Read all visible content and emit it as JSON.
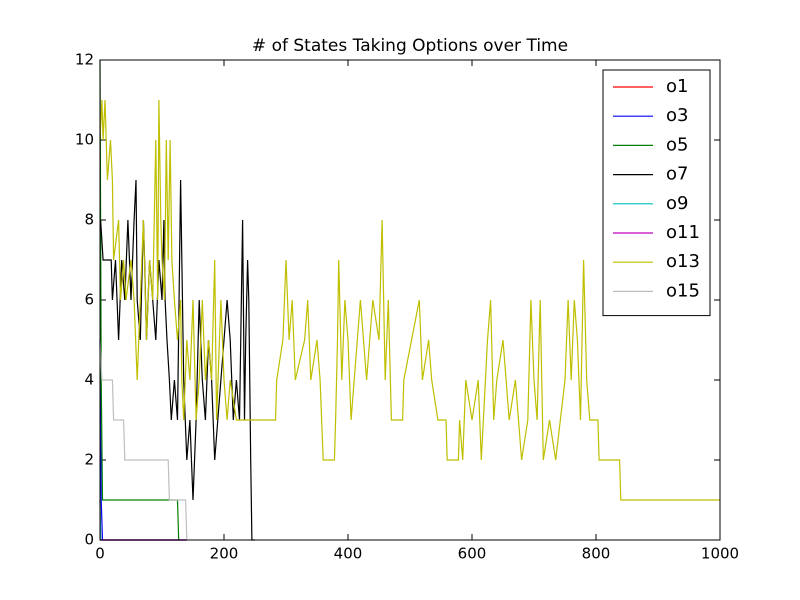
{
  "chart_data": {
    "type": "line",
    "title": "# of States Taking Options over Time",
    "xlim": [
      0,
      1000
    ],
    "ylim": [
      0,
      12
    ],
    "xticks": [
      0,
      200,
      400,
      600,
      800,
      1000
    ],
    "yticks": [
      0,
      2,
      4,
      6,
      8,
      10,
      12
    ],
    "legend": "upper right",
    "series": [
      {
        "name": "o1",
        "color": "#ff0000",
        "x": [
          0,
          1,
          3,
          140
        ],
        "values": [
          1,
          0,
          0,
          0
        ]
      },
      {
        "name": "o3",
        "color": "#0000ff",
        "x": [
          0,
          2,
          4,
          140
        ],
        "values": [
          5,
          1,
          0,
          0
        ]
      },
      {
        "name": "o5",
        "color": "#008000",
        "x": [
          0,
          2,
          4,
          125,
          127,
          128
        ],
        "values": [
          12,
          4,
          1,
          1,
          0,
          0
        ]
      },
      {
        "name": "o7",
        "color": "#000000",
        "x": [
          1,
          5,
          18,
          20,
          25,
          30,
          35,
          40,
          45,
          50,
          55,
          58,
          60,
          65,
          70,
          72,
          75,
          80,
          85,
          90,
          95,
          100,
          103,
          105,
          108,
          112,
          115,
          120,
          125,
          130,
          135,
          140,
          145,
          150,
          155,
          160,
          165,
          170,
          175,
          180,
          185,
          190,
          195,
          200,
          205,
          210,
          215,
          220,
          225,
          230,
          233,
          235,
          238,
          240,
          243,
          245,
          250
        ],
        "values": [
          8,
          7,
          7,
          6,
          7,
          5,
          7,
          6,
          8,
          6,
          8,
          9,
          6,
          5,
          8,
          7,
          5,
          7,
          6,
          5,
          7,
          6,
          8,
          6,
          5,
          4,
          3,
          4,
          3,
          9,
          4,
          2,
          3,
          1,
          3,
          6,
          4,
          3,
          5,
          4,
          2,
          3,
          4,
          5,
          6,
          5,
          3,
          4,
          3,
          8,
          3,
          5,
          7,
          6,
          2,
          0,
          0
        ]
      },
      {
        "name": "o9",
        "color": "#00bfbf",
        "x": [
          0,
          1,
          3
        ],
        "values": [
          1,
          0,
          0
        ]
      },
      {
        "name": "o11",
        "color": "#bf00bf",
        "x": [
          0,
          3,
          140
        ],
        "values": [
          0,
          0,
          0
        ]
      },
      {
        "name": "o13",
        "color": "#bfbf00",
        "x": [
          0,
          3,
          5,
          8,
          12,
          17,
          20,
          22,
          30,
          33,
          38,
          42,
          50,
          55,
          60,
          65,
          70,
          75,
          80,
          85,
          90,
          93,
          95,
          98,
          100,
          104,
          107,
          110,
          113,
          116,
          120,
          125,
          130,
          132,
          135,
          140,
          145,
          150,
          155,
          160,
          165,
          170,
          175,
          180,
          185,
          188,
          195,
          200,
          205,
          210,
          220,
          283,
          285,
          295,
          300,
          305,
          310,
          315,
          330,
          335,
          340,
          350,
          355,
          360,
          378,
          380,
          383,
          385,
          390,
          395,
          400,
          405,
          410,
          420,
          425,
          430,
          440,
          450,
          455,
          460,
          465,
          470,
          488,
          490,
          515,
          520,
          530,
          535,
          545,
          558,
          560,
          578,
          580,
          585,
          590,
          600,
          610,
          615,
          625,
          630,
          635,
          640,
          650,
          660,
          670,
          680,
          690,
          695,
          700,
          705,
          710,
          715,
          725,
          735,
          750,
          755,
          760,
          765,
          770,
          775,
          780,
          785,
          790,
          803,
          805,
          838,
          840,
          1000
        ],
        "values": [
          10,
          11,
          10,
          11,
          9,
          10,
          9,
          7,
          8,
          6,
          7,
          6,
          7,
          6,
          4,
          6,
          8,
          5,
          7,
          6,
          10,
          6,
          11,
          8,
          7,
          6,
          10,
          7,
          10,
          7,
          6,
          5,
          6,
          4,
          3,
          5,
          4,
          6,
          3,
          4,
          6,
          4,
          5,
          4,
          7,
          3,
          6,
          4,
          3,
          4,
          3,
          3,
          4,
          5,
          7,
          5,
          6,
          4,
          5,
          6,
          4,
          5,
          4,
          2,
          2,
          3,
          5,
          7,
          4,
          6,
          5,
          3,
          4,
          6,
          5,
          4,
          6,
          5,
          8,
          4,
          6,
          3,
          3,
          4,
          6,
          4,
          5,
          4,
          3,
          3,
          2,
          2,
          3,
          2,
          4,
          3,
          4,
          2,
          5,
          6,
          3,
          4,
          5,
          3,
          4,
          2,
          3,
          6,
          4,
          3,
          6,
          2,
          3,
          2,
          4,
          6,
          4,
          6,
          5,
          3,
          7,
          4,
          3,
          3,
          2,
          2,
          1,
          1
        ]
      },
      {
        "name": "o15",
        "color": "#bfbfbf",
        "x": [
          0,
          3,
          20,
          22,
          38,
          40,
          110,
          112,
          138,
          140
        ],
        "values": [
          5,
          4,
          4,
          3,
          3,
          2,
          2,
          1,
          1,
          0
        ]
      }
    ]
  }
}
